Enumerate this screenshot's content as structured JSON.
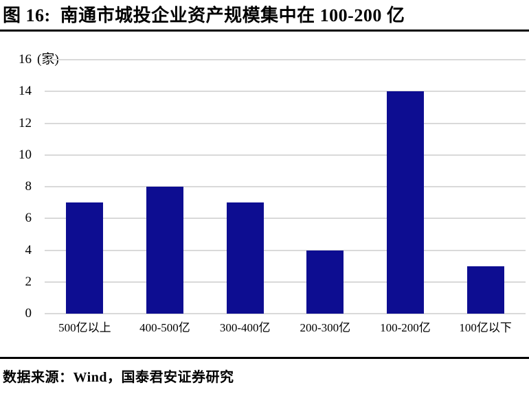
{
  "title": "图 16:  南通市城投企业资产规模集中在 100-200 亿",
  "footer": {
    "source_label": "数据来源：Wind，国泰君安证券研究"
  },
  "colors": {
    "bar": "#0d0d91",
    "gridline": "#d9d9d9",
    "rule": "#000000"
  },
  "chart_data": {
    "type": "bar",
    "categories": [
      "500亿以上",
      "400-500亿",
      "300-400亿",
      "200-300亿",
      "100-200亿",
      "100亿以下"
    ],
    "values": [
      7,
      8,
      7,
      4,
      14,
      3
    ],
    "title": "图 16:  南通市城投企业资产规模集中在 100-200 亿",
    "xlabel": "",
    "ylabel": "(家)",
    "ylim": [
      0,
      16
    ],
    "ytick_step": 2,
    "grid": true,
    "legend": false,
    "bar_color": "#0d0d91"
  }
}
